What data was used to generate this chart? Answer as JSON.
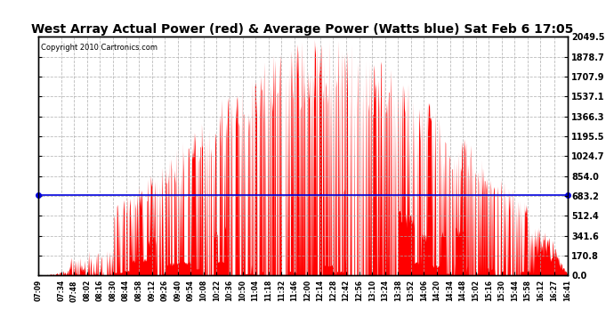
{
  "title": "West Array Actual Power (red) & Average Power (Watts blue) Sat Feb 6 17:05",
  "copyright": "Copyright 2010 Cartronics.com",
  "y_max": 2049.5,
  "y_min": 0.0,
  "y_ticks": [
    0.0,
    170.8,
    341.6,
    512.4,
    683.2,
    854.0,
    1024.7,
    1195.5,
    1366.3,
    1537.1,
    1707.9,
    1878.7,
    2049.5
  ],
  "average_power": 693.36,
  "bg_color": "#ffffff",
  "plot_bg_color": "#ffffff",
  "grid_color": "#aaaaaa",
  "red_color": "#ff0000",
  "blue_color": "#0000dd",
  "title_fontsize": 10,
  "x_tick_labels": [
    "07:09",
    "07:34",
    "07:48",
    "08:02",
    "08:16",
    "08:30",
    "08:44",
    "08:58",
    "09:12",
    "09:26",
    "09:40",
    "09:54",
    "10:08",
    "10:22",
    "10:36",
    "10:50",
    "11:04",
    "11:18",
    "11:32",
    "11:46",
    "12:00",
    "12:14",
    "12:28",
    "12:42",
    "12:56",
    "13:10",
    "13:24",
    "13:38",
    "13:52",
    "14:06",
    "14:20",
    "14:34",
    "14:48",
    "15:02",
    "15:16",
    "15:30",
    "15:44",
    "15:58",
    "16:12",
    "16:27",
    "16:41"
  ],
  "total_minutes": 572,
  "noon_hour": 12.3,
  "sigma": 2.4
}
